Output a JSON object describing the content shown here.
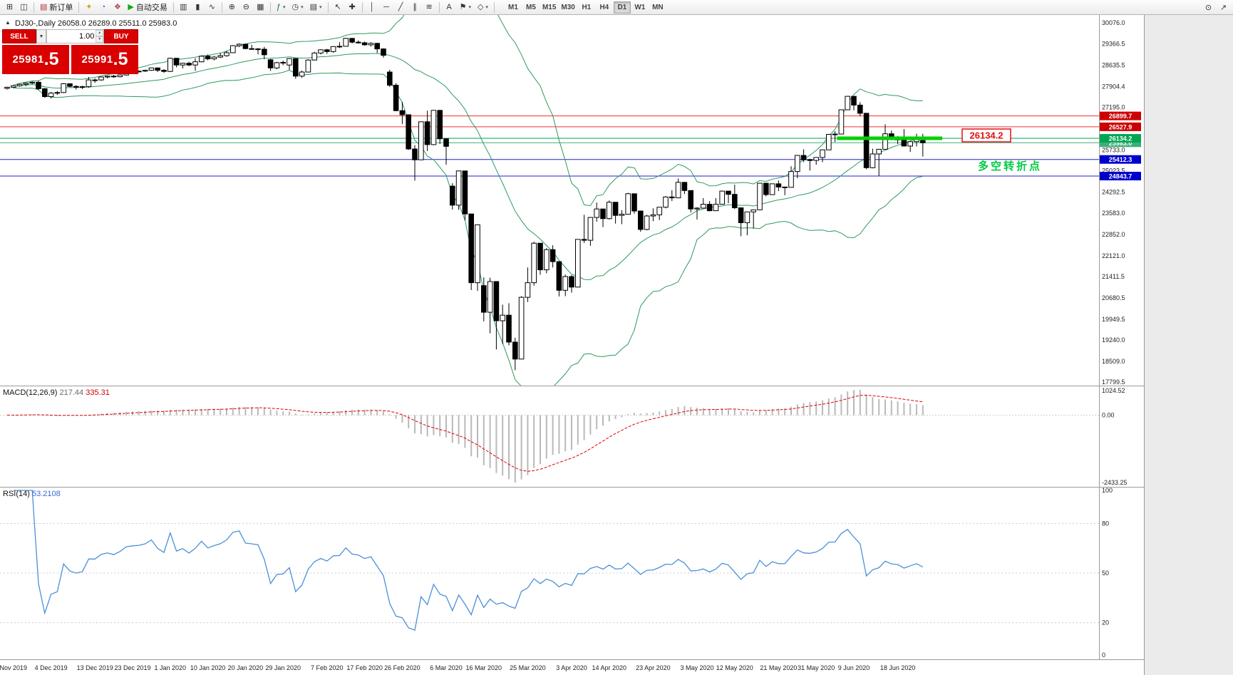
{
  "colors": {
    "panel_red": "#d90000",
    "up_candle": "#ffffff",
    "down_candle": "#000000",
    "candle_border": "#000000",
    "bollinger": "#2e9a5e",
    "macd_hist": "#b9b9b9",
    "macd_signal": "#e00000",
    "rsi_line": "#4a90d9",
    "hline_red": "#f03030",
    "hline_green": "#00a651",
    "hline_blue": "#2222cc",
    "bid_line": "#3fae7a",
    "thick_green": "#00d000",
    "axis_text": "#222222"
  },
  "toolbar": {
    "items": [
      {
        "name": "new-chart-icon",
        "glyph": "⊞"
      },
      {
        "name": "window-layout-icon",
        "glyph": "◫"
      },
      {
        "sep": true
      },
      {
        "name": "new-order-button",
        "glyph": "▤",
        "glyph_color": "#b03030",
        "label": "新订单"
      },
      {
        "sep": true
      },
      {
        "name": "market-watch-icon",
        "glyph": "✦",
        "glyph_color": "#d8a010"
      },
      {
        "name": "data-window-icon",
        "glyph": "◔",
        "glyph_color": "#3a6ad4"
      },
      {
        "name": "navigator-icon",
        "glyph": "❖",
        "glyph_color": "#b04848"
      },
      {
        "name": "autotrading-button",
        "glyph": "▶",
        "glyph_color": "#13a513",
        "label": "自动交易"
      },
      {
        "sep": true
      },
      {
        "name": "bar-chart-type-icon",
        "glyph": "▥"
      },
      {
        "name": "candle-chart-type-icon",
        "glyph": "▮"
      },
      {
        "name": "line-chart-type-icon",
        "glyph": "∿"
      },
      {
        "sep": true
      },
      {
        "name": "zoom-in-icon",
        "glyph": "⊕"
      },
      {
        "name": "zoom-out-icon",
        "glyph": "⊖"
      },
      {
        "name": "tile-windows-icon",
        "glyph": "▦"
      },
      {
        "sep": true
      },
      {
        "name": "indicators-icon",
        "glyph": "ƒ",
        "glyph_color": "#0a7a2a",
        "caret": true
      },
      {
        "name": "timeframes-icon",
        "glyph": "◷",
        "caret": true
      },
      {
        "name": "templates-icon",
        "glyph": "▤",
        "caret": true
      },
      {
        "sep": true
      },
      {
        "name": "cursor-icon",
        "glyph": "↖"
      },
      {
        "name": "crosshair-icon",
        "glyph": "✚"
      },
      {
        "sep": true
      },
      {
        "name": "vertical-line-icon",
        "glyph": "│"
      },
      {
        "name": "horizontal-line-icon",
        "glyph": "─"
      },
      {
        "name": "trendline-icon",
        "glyph": "╱"
      },
      {
        "name": "channel-icon",
        "glyph": "∥"
      },
      {
        "name": "fibonacci-icon",
        "glyph": "≋"
      },
      {
        "sep": true
      },
      {
        "name": "text-icon",
        "glyph": "A"
      },
      {
        "name": "arrow-tools-icon",
        "glyph": "⚑",
        "caret": true
      },
      {
        "name": "shapes-icon",
        "glyph": "◇",
        "caret": true
      },
      {
        "sep": true
      }
    ],
    "timeframes": [
      "M1",
      "M5",
      "M15",
      "M30",
      "H1",
      "H4",
      "D1",
      "W1",
      "MN"
    ],
    "active_timeframe": "D1",
    "right_items": [
      {
        "name": "search-icon",
        "glyph": "⊙"
      },
      {
        "name": "popout-icon",
        "glyph": "↗"
      }
    ]
  },
  "chart": {
    "title_symbol_period": "DJ30-,Daily",
    "title_ohlc": "26058.0 26289.0 25511.0 25983.0",
    "toggle_glyph": "▲"
  },
  "trade_panel": {
    "sell_label": "SELL",
    "buy_label": "BUY",
    "volume": "1.00",
    "sell_price": "25981.5",
    "buy_price": "25991.5",
    "caret_down": "▼",
    "step_up": "▲",
    "step_down": "▼"
  },
  "chart_data": {
    "type": "candlestick",
    "symbol": "DJ30-",
    "period": "Daily",
    "last_ohlc": {
      "open": 26058.0,
      "high": 26289.0,
      "low": 25511.0,
      "close": 25983.0
    },
    "candles": [
      [
        27840,
        27900,
        27800,
        27880
      ],
      [
        27880,
        27950,
        27850,
        27930
      ],
      [
        27930,
        28000,
        27900,
        27980
      ],
      [
        27980,
        28040,
        27920,
        28020
      ],
      [
        28020,
        28090,
        27980,
        28050
      ],
      [
        28050,
        28100,
        27780,
        27830
      ],
      [
        27830,
        27850,
        27520,
        27560
      ],
      [
        27560,
        27720,
        27500,
        27680
      ],
      [
        27680,
        27750,
        27620,
        27700
      ],
      [
        27700,
        28020,
        27680,
        28000
      ],
      [
        28000,
        28010,
        27880,
        27910
      ],
      [
        27910,
        27950,
        27800,
        27880
      ],
      [
        27880,
        27930,
        27820,
        27900
      ],
      [
        27900,
        28230,
        27860,
        28130
      ],
      [
        28130,
        28180,
        28030,
        28130
      ],
      [
        28130,
        28250,
        28100,
        28230
      ],
      [
        28230,
        28280,
        28180,
        28260
      ],
      [
        28260,
        28300,
        28200,
        28240
      ],
      [
        28240,
        28320,
        28220,
        28300
      ],
      [
        28300,
        28420,
        28280,
        28400
      ],
      [
        28400,
        28430,
        28350,
        28420
      ],
      [
        28420,
        28450,
        28380,
        28430
      ],
      [
        28430,
        28480,
        28400,
        28460
      ],
      [
        28460,
        28550,
        28440,
        28540
      ],
      [
        28540,
        28560,
        28400,
        28460
      ],
      [
        28460,
        28500,
        28370,
        28420
      ],
      [
        28420,
        28890,
        28400,
        28870
      ],
      [
        28870,
        28880,
        28560,
        28640
      ],
      [
        28640,
        28720,
        28520,
        28700
      ],
      [
        28700,
        28750,
        28600,
        28640
      ],
      [
        28640,
        28870,
        28440,
        28750
      ],
      [
        28750,
        28960,
        28730,
        28940
      ],
      [
        28940,
        29000,
        28800,
        28850
      ],
      [
        28850,
        28950,
        28800,
        28910
      ],
      [
        28910,
        29050,
        28880,
        28960
      ],
      [
        28960,
        29130,
        28920,
        29060
      ],
      [
        29060,
        29320,
        29050,
        29300
      ],
      [
        29300,
        29380,
        29250,
        29350
      ],
      [
        29350,
        29370,
        29180,
        29200
      ],
      [
        29200,
        29330,
        29160,
        29190
      ],
      [
        29190,
        29220,
        29000,
        29180
      ],
      [
        29180,
        29260,
        28840,
        28990
      ],
      [
        28820,
        28850,
        28440,
        28540
      ],
      [
        28540,
        28750,
        28500,
        28720
      ],
      [
        28720,
        28790,
        28630,
        28730
      ],
      [
        28640,
        28870,
        28470,
        28860
      ],
      [
        28860,
        28860,
        28170,
        28260
      ],
      [
        28260,
        28450,
        28200,
        28400
      ],
      [
        28400,
        28840,
        28390,
        28810
      ],
      [
        28810,
        29090,
        28800,
        29050
      ],
      [
        29050,
        29180,
        29000,
        29160
      ],
      [
        29160,
        29190,
        29020,
        29100
      ],
      [
        29100,
        29280,
        29060,
        29270
      ],
      [
        29270,
        29420,
        29220,
        29280
      ],
      [
        29280,
        29570,
        29270,
        29550
      ],
      [
        29550,
        29560,
        29380,
        29420
      ],
      [
        29420,
        29480,
        29370,
        29400
      ],
      [
        29400,
        29440,
        29300,
        29330
      ],
      [
        29330,
        29420,
        29270,
        29380
      ],
      [
        29380,
        29400,
        29050,
        29190
      ],
      [
        29190,
        29210,
        28890,
        28970
      ],
      [
        28400,
        28480,
        27890,
        27950
      ],
      [
        27950,
        28020,
        27060,
        27080
      ],
      [
        27080,
        27380,
        26620,
        26940
      ],
      [
        26940,
        26940,
        25740,
        25770
      ],
      [
        25770,
        25900,
        24690,
        25400
      ],
      [
        25400,
        26710,
        25390,
        26700
      ],
      [
        26700,
        27080,
        25700,
        25920
      ],
      [
        25920,
        27100,
        25900,
        27090
      ],
      [
        27090,
        27090,
        25940,
        26120
      ],
      [
        26120,
        26120,
        25230,
        25860
      ],
      [
        24500,
        24600,
        23700,
        23850
      ],
      [
        23850,
        25030,
        23690,
        25020
      ],
      [
        25020,
        25020,
        23330,
        23550
      ],
      [
        23550,
        23550,
        20950,
        21200
      ],
      [
        21200,
        23190,
        20920,
        23180
      ],
      [
        21100,
        21380,
        19880,
        20190
      ],
      [
        20190,
        21370,
        19470,
        21240
      ],
      [
        21240,
        21240,
        18920,
        19900
      ],
      [
        19900,
        20450,
        19100,
        20090
      ],
      [
        20090,
        20500,
        19060,
        19170
      ],
      [
        19170,
        19320,
        18210,
        18590
      ],
      [
        18590,
        20740,
        18590,
        20700
      ],
      [
        20700,
        21720,
        20540,
        21200
      ],
      [
        21200,
        22600,
        21100,
        22550
      ],
      [
        22550,
        22550,
        21470,
        21640
      ],
      [
        21640,
        22380,
        21520,
        22330
      ],
      [
        22330,
        22480,
        21720,
        21920
      ],
      [
        21920,
        21920,
        20730,
        20940
      ],
      [
        20940,
        21480,
        20740,
        21410
      ],
      [
        21410,
        21460,
        20860,
        21050
      ],
      [
        21050,
        22680,
        21050,
        22680
      ],
      [
        22680,
        23520,
        22560,
        22650
      ],
      [
        22650,
        23440,
        22460,
        23430
      ],
      [
        23430,
        23940,
        23290,
        23720
      ],
      [
        23720,
        23720,
        23100,
        23390
      ],
      [
        23390,
        24010,
        23360,
        23950
      ],
      [
        23950,
        23950,
        23220,
        23500
      ],
      [
        23500,
        23680,
        23200,
        23540
      ],
      [
        23540,
        24270,
        23530,
        24240
      ],
      [
        24240,
        24240,
        23560,
        23650
      ],
      [
        23650,
        23650,
        22940,
        23020
      ],
      [
        23020,
        23520,
        22990,
        23480
      ],
      [
        23480,
        23740,
        23300,
        23520
      ],
      [
        23520,
        23780,
        23340,
        23780
      ],
      [
        23780,
        24160,
        23740,
        24130
      ],
      [
        24130,
        24360,
        23990,
        24100
      ],
      [
        24100,
        24760,
        24100,
        24630
      ],
      [
        24630,
        24630,
        24230,
        24350
      ],
      [
        24350,
        24350,
        23600,
        23720
      ],
      [
        23720,
        23780,
        23360,
        23750
      ],
      [
        23750,
        24090,
        23740,
        23880
      ],
      [
        23880,
        23990,
        23640,
        23660
      ],
      [
        23660,
        24090,
        23660,
        23880
      ],
      [
        23880,
        24350,
        23880,
        24330
      ],
      [
        24330,
        24330,
        23920,
        24220
      ],
      [
        24220,
        24550,
        23720,
        23760
      ],
      [
        23760,
        23760,
        22790,
        23250
      ],
      [
        23250,
        23630,
        22820,
        23620
      ],
      [
        23620,
        23690,
        23050,
        23690
      ],
      [
        23690,
        24600,
        23690,
        24600
      ],
      [
        24600,
        24600,
        24150,
        24210
      ],
      [
        24210,
        24580,
        24210,
        24580
      ],
      [
        24580,
        24690,
        24330,
        24470
      ],
      [
        24470,
        24480,
        24190,
        24460
      ],
      [
        24460,
        25180,
        24460,
        25000
      ],
      [
        25000,
        25560,
        24770,
        25550
      ],
      [
        25550,
        25760,
        25320,
        25400
      ],
      [
        25400,
        25440,
        25030,
        25380
      ],
      [
        25380,
        25480,
        25230,
        25480
      ],
      [
        25480,
        25750,
        25320,
        25740
      ],
      [
        25740,
        26270,
        25740,
        26270
      ],
      [
        26270,
        26380,
        26010,
        26280
      ],
      [
        26280,
        27120,
        26280,
        27110
      ],
      [
        27110,
        27580,
        27100,
        27570
      ],
      [
        27570,
        27570,
        27090,
        27270
      ],
      [
        27270,
        27370,
        26890,
        26990
      ],
      [
        26990,
        26990,
        25080,
        25130
      ],
      [
        25130,
        25780,
        25110,
        25600
      ],
      [
        25600,
        25600,
        24845,
        25760
      ],
      [
        25760,
        26610,
        25760,
        26290
      ],
      [
        26290,
        26400,
        26070,
        26120
      ],
      [
        26120,
        26210,
        25940,
        26080
      ],
      [
        26080,
        26450,
        25860,
        25870
      ],
      [
        25870,
        26030,
        25670,
        26020
      ],
      [
        26020,
        26290,
        25860,
        26160
      ],
      [
        26058,
        26289,
        25511,
        25983
      ]
    ],
    "y_ticks": [
      "30076.0",
      "29366.5",
      "28635.5",
      "27904.4",
      "27195.0",
      "26464.0",
      "25733.0",
      "25023.5",
      "24292.5",
      "23583.0",
      "22852.0",
      "22121.0",
      "21411.5",
      "20680.5",
      "19949.5",
      "19240.0",
      "18509.0",
      "17799.5"
    ],
    "x_ticks": [
      {
        "label": "Nov 2019",
        "i": 1
      },
      {
        "label": "4 Dec 2019",
        "i": 7
      },
      {
        "label": "13 Dec 2019",
        "i": 14
      },
      {
        "label": "23 Dec 2019",
        "i": 20
      },
      {
        "label": "1 Jan 2020",
        "i": 26
      },
      {
        "label": "10 Jan 2020",
        "i": 32
      },
      {
        "label": "20 Jan 2020",
        "i": 38
      },
      {
        "label": "29 Jan 2020",
        "i": 44
      },
      {
        "label": "7 Feb 2020",
        "i": 51
      },
      {
        "label": "17 Feb 2020",
        "i": 57
      },
      {
        "label": "26 Feb 2020",
        "i": 63
      },
      {
        "label": "6 Mar 2020",
        "i": 70
      },
      {
        "label": "16 Mar 2020",
        "i": 76
      },
      {
        "label": "25 Mar 2020",
        "i": 83
      },
      {
        "label": "3 Apr 2020",
        "i": 90
      },
      {
        "label": "14 Apr 2020",
        "i": 96
      },
      {
        "label": "23 Apr 2020",
        "i": 103
      },
      {
        "label": "3 May 2020",
        "i": 110
      },
      {
        "label": "12 May 2020",
        "i": 116
      },
      {
        "label": "21 May 2020",
        "i": 123
      },
      {
        "label": "31 May 2020",
        "i": 129
      },
      {
        "label": "9 Jun 2020",
        "i": 135
      },
      {
        "label": "18 Jun 2020",
        "i": 142
      }
    ],
    "hlines": [
      {
        "price": 26899.7,
        "label": "26899.7",
        "color": "#f03030",
        "badge": "#cc0000"
      },
      {
        "price": 26527.9,
        "label": "26527.9",
        "color": "#f03030",
        "badge": "#cc0000"
      },
      {
        "price": 25412.3,
        "label": "25412.3",
        "color": "#2222cc",
        "badge": "#0000cc"
      },
      {
        "price": 24843.7,
        "label": "24843.7",
        "color": "#2222cc",
        "badge": "#0000cc"
      },
      {
        "price": 26134.2,
        "label": "26134.2",
        "color": "#00a651",
        "badge": "#00a651"
      }
    ],
    "bid": {
      "price": 25983.0,
      "label": "25983.0",
      "color": "#3fae7a"
    },
    "thick_line": {
      "price": 26134.2,
      "from_index": 133,
      "x2": 1322
    },
    "callout": {
      "text": "26134.2",
      "x": 1350,
      "y": 160
    },
    "note": {
      "text": "多空转折点",
      "x": 1372,
      "y": 217
    },
    "overlays": [
      {
        "name": "Bollinger Bands",
        "period": 20,
        "deviation": 2
      }
    ],
    "indicators": [
      {
        "display_name": "MACD(12,26,9)",
        "main_value": "217.44",
        "signal_value": "335.31",
        "fast": 12,
        "slow": 26,
        "signal": 9,
        "axis_labels": [
          "1024.52",
          "0.00",
          "-2433.25"
        ]
      },
      {
        "display_name": "RSI(14)",
        "value": "53.2108",
        "period": 14,
        "axis_labels": [
          "100",
          "80",
          "50",
          "20",
          "0"
        ],
        "axis_values": [
          100,
          80,
          50,
          20,
          0
        ],
        "levels": [
          80,
          50,
          20
        ]
      }
    ]
  }
}
